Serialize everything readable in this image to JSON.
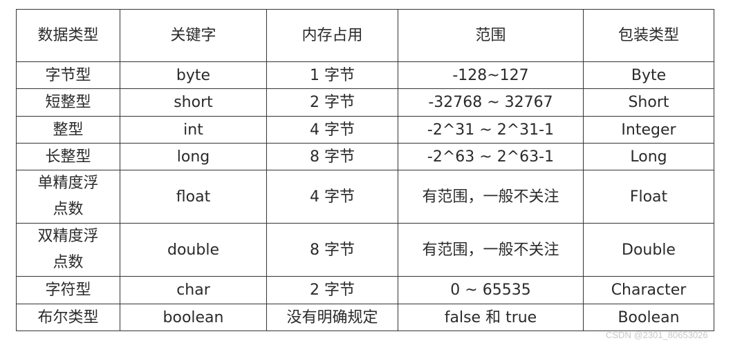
{
  "headers": [
    "数据类型",
    "关键字",
    "内存占用",
    "范围",
    "包装类型"
  ],
  "rows": [
    [
      "字节型",
      "byte",
      "1 字节",
      "-128~127",
      "Byte"
    ],
    [
      "短整型",
      "short",
      "2 字节",
      "-32768 ~ 32767",
      "Short"
    ],
    [
      "整型",
      "int",
      "4 字节",
      "-2^31 ~ 2^31-1",
      "Integer"
    ],
    [
      "长整型",
      "long",
      "8 字节",
      "-2^63 ~ 2^63-1",
      "Long"
    ],
    [
      "单精度浮点数",
      "float",
      "4 字节",
      "有范围，一般不关注",
      "Float"
    ],
    [
      "双精度浮点数",
      "double",
      "8 字节",
      "有范围，一般不关注",
      "Double"
    ],
    [
      "字符型",
      "char",
      "2 字节",
      "0 ~ 65535",
      "Character"
    ],
    [
      "布尔类型",
      "boolean",
      "没有明确规定",
      "false  和 true",
      "Boolean"
    ]
  ],
  "watermark": "CSDN @2301_80653026"
}
